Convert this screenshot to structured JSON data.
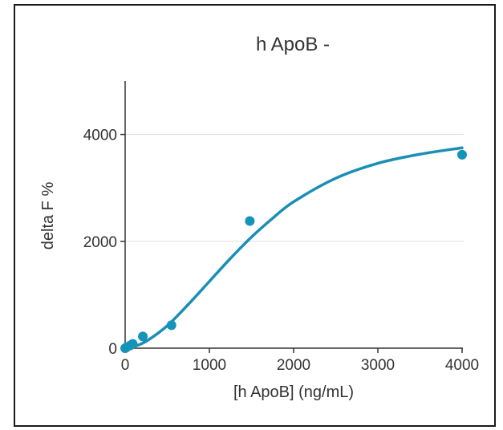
{
  "chart_data": {
    "type": "scatter",
    "title": "h ApoB  -",
    "xlabel": "[h ApoB] (ng/mL)",
    "ylabel": "delta F %",
    "xlim": [
      0,
      4000
    ],
    "ylim": [
      0,
      5000
    ],
    "xticks": [
      0,
      1000,
      2000,
      3000,
      4000
    ],
    "yticks": [
      0,
      2000,
      4000
    ],
    "grid": true,
    "legend": "none",
    "colors": {
      "series": "#1a8fb5",
      "point": "#1593b8",
      "grid": "#dddddd",
      "axis": "#333333"
    },
    "points": [
      {
        "x": 0,
        "y": 0
      },
      {
        "x": 20,
        "y": 20
      },
      {
        "x": 60,
        "y": 50
      },
      {
        "x": 90,
        "y": 80
      },
      {
        "x": 210,
        "y": 220
      },
      {
        "x": 550,
        "y": 430
      },
      {
        "x": 1480,
        "y": 2380
      },
      {
        "x": 4000,
        "y": 3620
      }
    ],
    "fit": {
      "type": "sigmoidal",
      "x": [
        0,
        100,
        250,
        500,
        750,
        1000,
        1250,
        1500,
        1750,
        2000,
        2500,
        3000,
        3500,
        4000
      ],
      "y": [
        0,
        30,
        130,
        420,
        820,
        1250,
        1680,
        2080,
        2430,
        2740,
        3180,
        3460,
        3630,
        3750
      ]
    }
  }
}
